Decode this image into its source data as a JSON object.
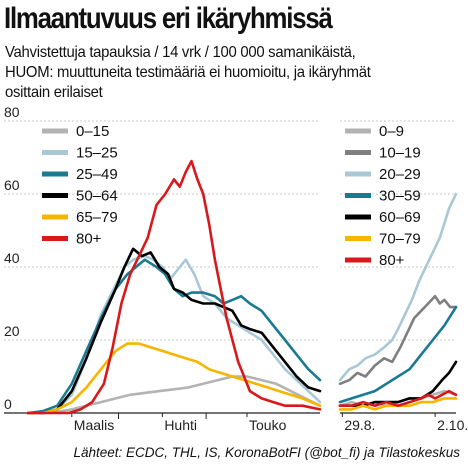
{
  "title": "Ilmaantuvuus eri ikäryhmissä",
  "subtitle_lines": [
    "Vahvistettuja tapauksia / 14 vrk / 100 000 samanikäistä,",
    "HUOM: muuttuneita testimääriä ei huomioitu, ja ikäryhmät",
    "osittain erilaiset"
  ],
  "source": "Lähteet: ECDC, THL, IS, KoronaBotFI (@bot_fi) ja Tilastokeskus",
  "chart_data": [
    {
      "type": "line",
      "ylim": [
        0,
        80
      ],
      "yticks": [
        0,
        20,
        40,
        60,
        80
      ],
      "xlim": [
        0,
        100
      ],
      "xticks": [
        {
          "x": 15,
          "label": "Maalis"
        },
        {
          "x": 46,
          "label": "Huhti"
        },
        {
          "x": 75,
          "label": "Touko"
        }
      ],
      "series": [
        {
          "name": "0–15",
          "color": "#b3b3b3",
          "points": [
            [
              0,
              0
            ],
            [
              5,
              0
            ],
            [
              10,
              0.3
            ],
            [
              15,
              1
            ],
            [
              20,
              2
            ],
            [
              25,
              3
            ],
            [
              30,
              4
            ],
            [
              35,
              5
            ],
            [
              40,
              5.5
            ],
            [
              45,
              6
            ],
            [
              50,
              6.5
            ],
            [
              55,
              7
            ],
            [
              60,
              8
            ],
            [
              65,
              9
            ],
            [
              70,
              10
            ],
            [
              75,
              10
            ],
            [
              80,
              9
            ],
            [
              85,
              8
            ],
            [
              90,
              6
            ],
            [
              95,
              4
            ],
            [
              100,
              2
            ]
          ]
        },
        {
          "name": "15–25",
          "color": "#a9c8d6",
          "points": [
            [
              0,
              0
            ],
            [
              5,
              0
            ],
            [
              10,
              1
            ],
            [
              15,
              5
            ],
            [
              20,
              15
            ],
            [
              25,
              27
            ],
            [
              30,
              35
            ],
            [
              33,
              40
            ],
            [
              36,
              42
            ],
            [
              40,
              43
            ],
            [
              43,
              42
            ],
            [
              46,
              40
            ],
            [
              49,
              37
            ],
            [
              52,
              40
            ],
            [
              54,
              42
            ],
            [
              57,
              38
            ],
            [
              60,
              32
            ],
            [
              64,
              30
            ],
            [
              68,
              26
            ],
            [
              72,
              24
            ],
            [
              76,
              22
            ],
            [
              80,
              20
            ],
            [
              84,
              16
            ],
            [
              88,
              12
            ],
            [
              92,
              9
            ],
            [
              96,
              6
            ],
            [
              100,
              3
            ]
          ]
        },
        {
          "name": "25–49",
          "color": "#1a7a91",
          "points": [
            [
              0,
              0
            ],
            [
              5,
              0.5
            ],
            [
              10,
              2
            ],
            [
              15,
              8
            ],
            [
              20,
              17
            ],
            [
              25,
              26
            ],
            [
              30,
              34
            ],
            [
              34,
              38
            ],
            [
              37,
              40
            ],
            [
              40,
              42
            ],
            [
              44,
              40
            ],
            [
              47,
              38
            ],
            [
              50,
              34
            ],
            [
              53,
              32
            ],
            [
              56,
              33
            ],
            [
              60,
              33
            ],
            [
              64,
              32
            ],
            [
              67,
              30
            ],
            [
              70,
              31
            ],
            [
              73,
              32
            ],
            [
              76,
              30
            ],
            [
              80,
              28
            ],
            [
              84,
              24
            ],
            [
              88,
              20
            ],
            [
              92,
              16
            ],
            [
              96,
              12
            ],
            [
              100,
              9
            ]
          ]
        },
        {
          "name": "50–64",
          "color": "#000000",
          "points": [
            [
              0,
              0
            ],
            [
              5,
              0
            ],
            [
              10,
              1
            ],
            [
              15,
              6
            ],
            [
              20,
              15
            ],
            [
              25,
              25
            ],
            [
              30,
              34
            ],
            [
              33,
              40
            ],
            [
              36,
              45
            ],
            [
              39,
              43
            ],
            [
              42,
              44
            ],
            [
              45,
              40
            ],
            [
              48,
              38
            ],
            [
              50,
              34
            ],
            [
              53,
              33
            ],
            [
              56,
              31
            ],
            [
              60,
              30
            ],
            [
              64,
              30
            ],
            [
              67,
              29
            ],
            [
              70,
              28
            ],
            [
              73,
              24
            ],
            [
              76,
              23
            ],
            [
              80,
              22
            ],
            [
              84,
              18
            ],
            [
              88,
              14
            ],
            [
              92,
              10
            ],
            [
              96,
              7
            ],
            [
              100,
              6
            ]
          ]
        },
        {
          "name": "65–79",
          "color": "#f7b500",
          "points": [
            [
              0,
              0
            ],
            [
              5,
              0
            ],
            [
              10,
              1
            ],
            [
              15,
              3
            ],
            [
              20,
              7
            ],
            [
              25,
              12
            ],
            [
              30,
              17
            ],
            [
              34,
              19
            ],
            [
              38,
              19
            ],
            [
              42,
              18
            ],
            [
              46,
              17
            ],
            [
              50,
              16
            ],
            [
              54,
              15
            ],
            [
              58,
              14
            ],
            [
              62,
              12
            ],
            [
              66,
              11
            ],
            [
              70,
              10
            ],
            [
              74,
              9
            ],
            [
              78,
              8
            ],
            [
              82,
              7
            ],
            [
              86,
              6
            ],
            [
              90,
              5
            ],
            [
              94,
              4
            ],
            [
              97,
              3
            ],
            [
              100,
              2
            ]
          ]
        },
        {
          "name": "80+",
          "color": "#d7191c",
          "points": [
            [
              0,
              0
            ],
            [
              8,
              0
            ],
            [
              14,
              0
            ],
            [
              18,
              1
            ],
            [
              22,
              3
            ],
            [
              26,
              8
            ],
            [
              29,
              18
            ],
            [
              32,
              30
            ],
            [
              35,
              38
            ],
            [
              38,
              43
            ],
            [
              41,
              48
            ],
            [
              44,
              57
            ],
            [
              47,
              60
            ],
            [
              50,
              64
            ],
            [
              52,
              62
            ],
            [
              54,
              66
            ],
            [
              56,
              69
            ],
            [
              58,
              64
            ],
            [
              60,
              60
            ],
            [
              62,
              52
            ],
            [
              64,
              42
            ],
            [
              66,
              34
            ],
            [
              68,
              26
            ],
            [
              70,
              20
            ],
            [
              72,
              14
            ],
            [
              74,
              10
            ],
            [
              76,
              6
            ],
            [
              80,
              4
            ],
            [
              84,
              3
            ],
            [
              88,
              2
            ],
            [
              94,
              2
            ],
            [
              100,
              1
            ]
          ]
        }
      ]
    },
    {
      "type": "line",
      "ylim": [
        0,
        80
      ],
      "xlim": [
        0,
        100
      ],
      "xticks": [
        {
          "x": 2,
          "label": "29.8."
        },
        {
          "x": 82,
          "label": "2.10."
        }
      ],
      "series": [
        {
          "name": "0–9",
          "color": "#b3b3b3",
          "points": [
            [
              0,
              2
            ],
            [
              10,
              3
            ],
            [
              20,
              2
            ],
            [
              30,
              3
            ],
            [
              40,
              2
            ],
            [
              50,
              3
            ],
            [
              60,
              4
            ],
            [
              70,
              4
            ],
            [
              80,
              5
            ],
            [
              90,
              6
            ],
            [
              100,
              5
            ]
          ]
        },
        {
          "name": "10–19",
          "color": "#7f7f7f",
          "points": [
            [
              0,
              8
            ],
            [
              8,
              9
            ],
            [
              15,
              11
            ],
            [
              22,
              10
            ],
            [
              30,
              13
            ],
            [
              38,
              15
            ],
            [
              45,
              14
            ],
            [
              52,
              18
            ],
            [
              58,
              22
            ],
            [
              64,
              26
            ],
            [
              70,
              28
            ],
            [
              76,
              30
            ],
            [
              82,
              32
            ],
            [
              86,
              30
            ],
            [
              90,
              31
            ],
            [
              95,
              29
            ],
            [
              100,
              29
            ]
          ]
        },
        {
          "name": "20–29",
          "color": "#a9c8d6",
          "points": [
            [
              0,
              9
            ],
            [
              8,
              12
            ],
            [
              15,
              13
            ],
            [
              22,
              15
            ],
            [
              30,
              16
            ],
            [
              38,
              18
            ],
            [
              45,
              20
            ],
            [
              50,
              23
            ],
            [
              56,
              27
            ],
            [
              62,
              31
            ],
            [
              68,
              36
            ],
            [
              74,
              40
            ],
            [
              80,
              44
            ],
            [
              86,
              48
            ],
            [
              90,
              52
            ],
            [
              94,
              56
            ],
            [
              100,
              60
            ]
          ]
        },
        {
          "name": "30–59",
          "color": "#1a7a91",
          "points": [
            [
              0,
              3
            ],
            [
              10,
              4
            ],
            [
              20,
              5
            ],
            [
              30,
              6
            ],
            [
              40,
              8
            ],
            [
              50,
              10
            ],
            [
              60,
              12
            ],
            [
              70,
              16
            ],
            [
              80,
              20
            ],
            [
              90,
              24
            ],
            [
              100,
              29
            ]
          ]
        },
        {
          "name": "60–69",
          "color": "#000000",
          "points": [
            [
              0,
              2
            ],
            [
              10,
              2
            ],
            [
              20,
              2
            ],
            [
              30,
              3
            ],
            [
              40,
              3
            ],
            [
              50,
              3
            ],
            [
              60,
              4
            ],
            [
              70,
              4
            ],
            [
              80,
              6
            ],
            [
              88,
              9
            ],
            [
              94,
              11
            ],
            [
              100,
              14
            ]
          ]
        },
        {
          "name": "70–79",
          "color": "#f7b500",
          "points": [
            [
              0,
              1
            ],
            [
              10,
              1
            ],
            [
              20,
              2
            ],
            [
              30,
              1
            ],
            [
              40,
              2
            ],
            [
              50,
              2
            ],
            [
              60,
              2
            ],
            [
              70,
              3
            ],
            [
              80,
              3
            ],
            [
              90,
              4
            ],
            [
              100,
              4
            ]
          ]
        },
        {
          "name": "80+",
          "color": "#d7191c",
          "points": [
            [
              0,
              2
            ],
            [
              10,
              2
            ],
            [
              20,
              3
            ],
            [
              30,
              2
            ],
            [
              40,
              3
            ],
            [
              50,
              2
            ],
            [
              60,
              3
            ],
            [
              70,
              4
            ],
            [
              76,
              5
            ],
            [
              82,
              4
            ],
            [
              88,
              5
            ],
            [
              94,
              6
            ],
            [
              100,
              5
            ]
          ]
        }
      ]
    }
  ]
}
